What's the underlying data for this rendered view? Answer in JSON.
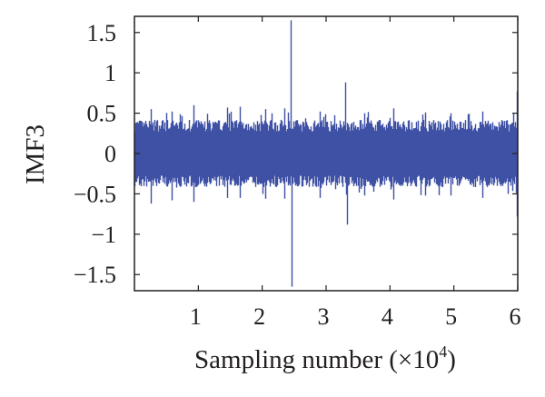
{
  "chart_data": {
    "type": "line",
    "title": "",
    "ylabel": "IMF3",
    "xlabel": {
      "prefix": "Sampling number (×10",
      "exponent": "4",
      "suffix": ")"
    },
    "x_unit_scale": 10000,
    "xlim": [
      0,
      60000
    ],
    "ylim": [
      -1.7,
      1.7
    ],
    "xticks": [
      10000,
      20000,
      30000,
      40000,
      50000,
      60000
    ],
    "xtick_labels": [
      "1",
      "2",
      "3",
      "4",
      "5",
      "6"
    ],
    "yticks": [
      1.5,
      1,
      0.5,
      0,
      -0.5,
      -1,
      -1.5
    ],
    "ytick_labels": [
      "1.5",
      "1",
      "0.5",
      "0",
      "−0.5",
      "−1",
      "−1.5"
    ],
    "grid": false,
    "series": [
      {
        "name": "",
        "color": "#3f51a5",
        "n_samples": 60000,
        "noise_band": [
          -0.38,
          0.38
        ],
        "peaks": [
          {
            "x": 2500,
            "y": 0.55
          },
          {
            "x": 2500,
            "y": -0.62
          },
          {
            "x": 5800,
            "y": 0.52
          },
          {
            "x": 5800,
            "y": -0.58
          },
          {
            "x": 9300,
            "y": 0.6
          },
          {
            "x": 9300,
            "y": -0.6
          },
          {
            "x": 14500,
            "y": 0.57
          },
          {
            "x": 14500,
            "y": -0.55
          },
          {
            "x": 16500,
            "y": 0.58
          },
          {
            "x": 16500,
            "y": -0.55
          },
          {
            "x": 20500,
            "y": 0.55
          },
          {
            "x": 20500,
            "y": -0.56
          },
          {
            "x": 23500,
            "y": 0.56
          },
          {
            "x": 23500,
            "y": -0.56
          },
          {
            "x": 24500,
            "y": 1.65
          },
          {
            "x": 24600,
            "y": -1.65
          },
          {
            "x": 29000,
            "y": 0.52
          },
          {
            "x": 29000,
            "y": -0.55
          },
          {
            "x": 33000,
            "y": 0.88
          },
          {
            "x": 33200,
            "y": -0.88
          },
          {
            "x": 36000,
            "y": 0.5
          },
          {
            "x": 36000,
            "y": -0.52
          },
          {
            "x": 40500,
            "y": 0.56
          },
          {
            "x": 40500,
            "y": -0.57
          },
          {
            "x": 45500,
            "y": 0.51
          },
          {
            "x": 45500,
            "y": -0.52
          },
          {
            "x": 49500,
            "y": 0.5
          },
          {
            "x": 49500,
            "y": -0.52
          },
          {
            "x": 54500,
            "y": 0.52
          },
          {
            "x": 54500,
            "y": -0.55
          },
          {
            "x": 59800,
            "y": 0.77
          },
          {
            "x": 59800,
            "y": -0.78
          }
        ]
      }
    ]
  }
}
